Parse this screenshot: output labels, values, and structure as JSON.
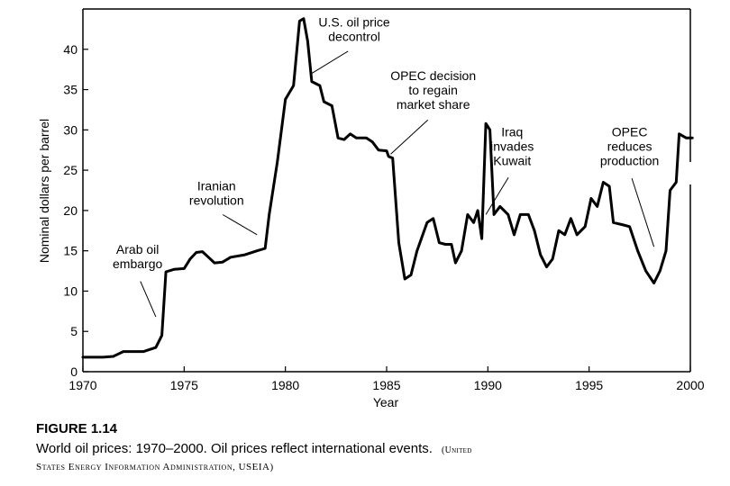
{
  "chart_data": {
    "type": "line",
    "title": "",
    "xlabel": "Year",
    "ylabel": "Nominal dollars per barrel",
    "xlim": [
      1970,
      2000
    ],
    "ylim": [
      0,
      45
    ],
    "x_ticks": [
      1970,
      1975,
      1980,
      1985,
      1990,
      1995,
      2000
    ],
    "y_ticks": [
      0,
      5,
      10,
      15,
      20,
      25,
      30,
      35,
      40
    ],
    "grid": false,
    "series": [
      {
        "name": "World oil price",
        "points": [
          [
            1970.0,
            1.8
          ],
          [
            1971.0,
            1.8
          ],
          [
            1971.5,
            1.9
          ],
          [
            1972.0,
            2.5
          ],
          [
            1973.0,
            2.5
          ],
          [
            1973.6,
            3.0
          ],
          [
            1973.9,
            4.5
          ],
          [
            1974.1,
            12.4
          ],
          [
            1974.5,
            12.7
          ],
          [
            1975.0,
            12.8
          ],
          [
            1975.3,
            14.0
          ],
          [
            1975.6,
            14.8
          ],
          [
            1975.9,
            14.9
          ],
          [
            1976.2,
            14.2
          ],
          [
            1976.5,
            13.5
          ],
          [
            1976.9,
            13.6
          ],
          [
            1977.3,
            14.2
          ],
          [
            1978.0,
            14.5
          ],
          [
            1978.6,
            15.0
          ],
          [
            1979.0,
            15.3
          ],
          [
            1979.2,
            19.5
          ],
          [
            1979.6,
            26.0
          ],
          [
            1980.0,
            33.8
          ],
          [
            1980.4,
            35.5
          ],
          [
            1980.7,
            43.5
          ],
          [
            1980.9,
            43.8
          ],
          [
            1981.1,
            41.0
          ],
          [
            1981.3,
            36.0
          ],
          [
            1981.7,
            35.5
          ],
          [
            1981.9,
            33.5
          ],
          [
            1982.3,
            33.0
          ],
          [
            1982.6,
            29.0
          ],
          [
            1982.9,
            28.8
          ],
          [
            1983.2,
            29.5
          ],
          [
            1983.5,
            29.0
          ],
          [
            1984.0,
            29.0
          ],
          [
            1984.3,
            28.5
          ],
          [
            1984.6,
            27.5
          ],
          [
            1985.0,
            27.4
          ],
          [
            1985.1,
            26.7
          ],
          [
            1985.3,
            26.5
          ],
          [
            1985.6,
            16.0
          ],
          [
            1985.9,
            11.5
          ],
          [
            1986.2,
            12.0
          ],
          [
            1986.5,
            15.0
          ],
          [
            1987.0,
            18.5
          ],
          [
            1987.3,
            19.0
          ],
          [
            1987.6,
            16.0
          ],
          [
            1987.9,
            15.8
          ],
          [
            1988.2,
            15.8
          ],
          [
            1988.4,
            13.5
          ],
          [
            1988.7,
            15.0
          ],
          [
            1989.0,
            19.5
          ],
          [
            1989.3,
            18.5
          ],
          [
            1989.5,
            20.0
          ],
          [
            1989.7,
            16.5
          ],
          [
            1989.9,
            30.8
          ],
          [
            1990.1,
            30.0
          ],
          [
            1990.3,
            19.5
          ],
          [
            1990.6,
            20.5
          ],
          [
            1991.0,
            19.5
          ],
          [
            1991.3,
            17.0
          ],
          [
            1991.6,
            19.5
          ],
          [
            1992.0,
            19.5
          ],
          [
            1992.3,
            17.5
          ],
          [
            1992.6,
            14.5
          ],
          [
            1992.9,
            13.0
          ],
          [
            1993.2,
            14.0
          ],
          [
            1993.5,
            17.5
          ],
          [
            1993.8,
            17.0
          ],
          [
            1994.1,
            19.0
          ],
          [
            1994.4,
            17.0
          ],
          [
            1994.8,
            18.0
          ],
          [
            1995.1,
            21.5
          ],
          [
            1995.4,
            20.5
          ],
          [
            1995.7,
            23.5
          ],
          [
            1996.0,
            23.0
          ],
          [
            1996.2,
            18.5
          ],
          [
            1996.7,
            18.2
          ],
          [
            1997.0,
            18.0
          ],
          [
            1997.4,
            15.0
          ],
          [
            1997.8,
            12.5
          ],
          [
            1998.2,
            11.0
          ],
          [
            1998.5,
            12.5
          ],
          [
            1998.8,
            15.0
          ],
          [
            1999.0,
            22.5
          ],
          [
            1999.3,
            23.5
          ],
          [
            1999.45,
            29.5
          ],
          [
            1999.8,
            29.0
          ],
          [
            2000.1,
            29.0
          ]
        ]
      }
    ],
    "annotations": [
      {
        "lines": [
          "Arab oil",
          "embargo"
        ],
        "anchor": [
          1972.7,
          14.6
        ],
        "target": [
          1973.6,
          6.8
        ]
      },
      {
        "lines": [
          "Iranian",
          "revolution"
        ],
        "anchor": [
          1976.6,
          22.5
        ],
        "target": [
          1978.6,
          17.0
        ]
      },
      {
        "lines": [
          "U.S. oil price",
          "decontrol"
        ],
        "anchor": [
          1983.4,
          42.8
        ],
        "target": [
          1981.3,
          37.0
        ]
      },
      {
        "lines": [
          "OPEC decision",
          "to regain",
          "market share"
        ],
        "anchor": [
          1987.3,
          36.2
        ],
        "target": [
          1985.2,
          27.0
        ]
      },
      {
        "lines": [
          "Iraq",
          "invades",
          "Kuwait"
        ],
        "anchor": [
          1991.2,
          29.2
        ],
        "target": [
          1989.9,
          19.5
        ]
      },
      {
        "lines": [
          "OPEC",
          "reduces",
          "production"
        ],
        "anchor": [
          1997.0,
          29.2
        ],
        "target": [
          1998.2,
          15.5
        ]
      }
    ]
  },
  "caption": {
    "figure_number": "FIGURE 1.14",
    "text": "World oil prices: 1970–2000. Oil prices reflect international events.",
    "source_start": "(United",
    "source_end": "States Energy Information Administration, USEIA)"
  }
}
